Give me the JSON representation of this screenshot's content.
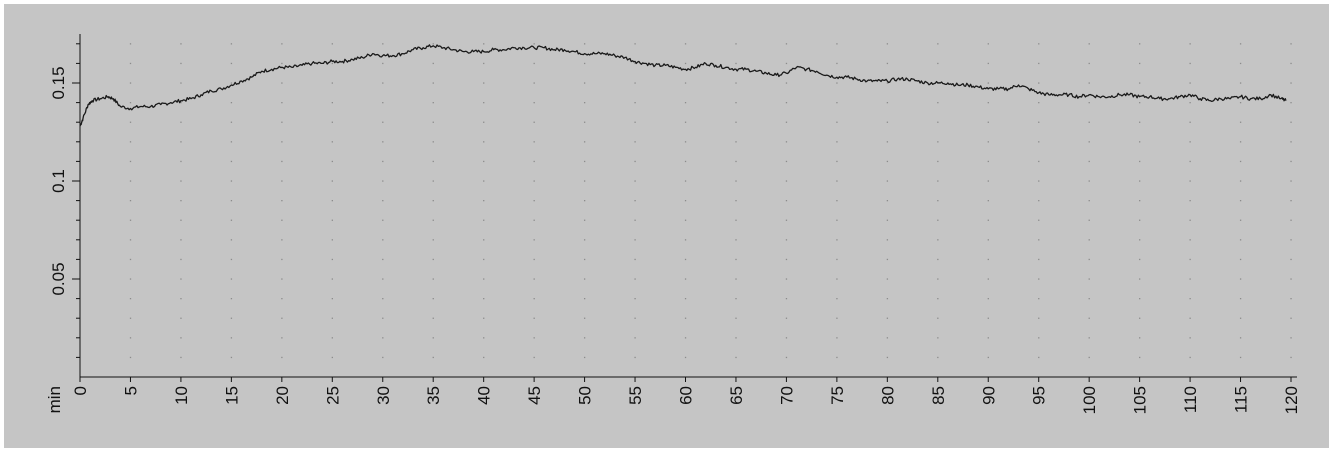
{
  "chart_data": {
    "type": "line",
    "title": "",
    "xlabel": "min",
    "ylabel": "",
    "xlim": [
      0,
      120
    ],
    "ylim": [
      0,
      0.175
    ],
    "x_ticks": [
      0,
      5,
      10,
      15,
      20,
      25,
      30,
      35,
      40,
      45,
      50,
      55,
      60,
      65,
      70,
      75,
      80,
      85,
      90,
      95,
      100,
      105,
      110,
      115,
      120
    ],
    "y_ticks": [
      "0.05",
      "0.1",
      "0.15"
    ],
    "y_tick_values": [
      0.05,
      0.1,
      0.15
    ],
    "grid": "dotted",
    "colors": {
      "background": "#c5c5c5",
      "line": "#1a1a1a",
      "axis": "#111111",
      "grid": "#8c8c8c"
    },
    "series": [
      {
        "x": [
          0,
          0.3,
          0.8,
          1.2,
          2,
          2.8,
          3.3,
          4,
          5,
          6,
          7,
          8,
          9,
          10,
          11,
          12,
          13,
          14,
          15,
          16,
          17,
          18,
          19,
          20,
          21,
          22,
          23,
          24,
          25,
          26,
          27,
          28,
          29,
          30,
          31,
          32,
          33,
          34,
          35,
          36,
          37,
          38,
          39,
          40,
          41,
          42,
          43,
          44,
          45,
          46,
          47,
          48,
          49,
          50,
          51,
          52,
          53,
          54,
          55,
          56,
          57,
          58,
          59,
          60,
          61,
          62,
          63,
          64,
          65,
          66,
          67,
          68,
          69,
          70,
          71,
          72,
          73,
          74,
          75,
          76,
          77,
          78,
          79,
          80,
          81,
          82,
          83,
          84,
          85,
          86,
          87,
          88,
          89,
          90,
          91,
          92,
          93,
          94,
          95,
          96,
          97,
          98,
          99,
          100,
          101,
          102,
          103,
          104,
          105,
          106,
          107,
          108,
          109,
          110,
          111,
          112,
          113,
          114,
          115,
          116,
          117,
          118,
          119,
          119.5
        ],
        "values": [
          0.128,
          0.132,
          0.139,
          0.141,
          0.142,
          0.143,
          0.142,
          0.138,
          0.137,
          0.138,
          0.138,
          0.139,
          0.14,
          0.141,
          0.142,
          0.144,
          0.146,
          0.147,
          0.149,
          0.151,
          0.153,
          0.156,
          0.157,
          0.158,
          0.158,
          0.159,
          0.16,
          0.16,
          0.161,
          0.161,
          0.162,
          0.163,
          0.165,
          0.164,
          0.164,
          0.165,
          0.167,
          0.168,
          0.169,
          0.168,
          0.167,
          0.166,
          0.166,
          0.166,
          0.167,
          0.167,
          0.168,
          0.168,
          0.168,
          0.168,
          0.167,
          0.167,
          0.166,
          0.165,
          0.165,
          0.165,
          0.164,
          0.163,
          0.161,
          0.16,
          0.159,
          0.159,
          0.158,
          0.157,
          0.158,
          0.16,
          0.159,
          0.158,
          0.157,
          0.157,
          0.156,
          0.155,
          0.154,
          0.155,
          0.158,
          0.157,
          0.156,
          0.154,
          0.153,
          0.153,
          0.152,
          0.151,
          0.151,
          0.151,
          0.152,
          0.152,
          0.151,
          0.15,
          0.15,
          0.15,
          0.149,
          0.149,
          0.148,
          0.147,
          0.147,
          0.147,
          0.149,
          0.147,
          0.145,
          0.144,
          0.144,
          0.144,
          0.143,
          0.144,
          0.143,
          0.143,
          0.144,
          0.144,
          0.143,
          0.143,
          0.142,
          0.142,
          0.143,
          0.144,
          0.142,
          0.141,
          0.142,
          0.142,
          0.143,
          0.142,
          0.142,
          0.144,
          0.142,
          0.141
        ]
      }
    ]
  }
}
